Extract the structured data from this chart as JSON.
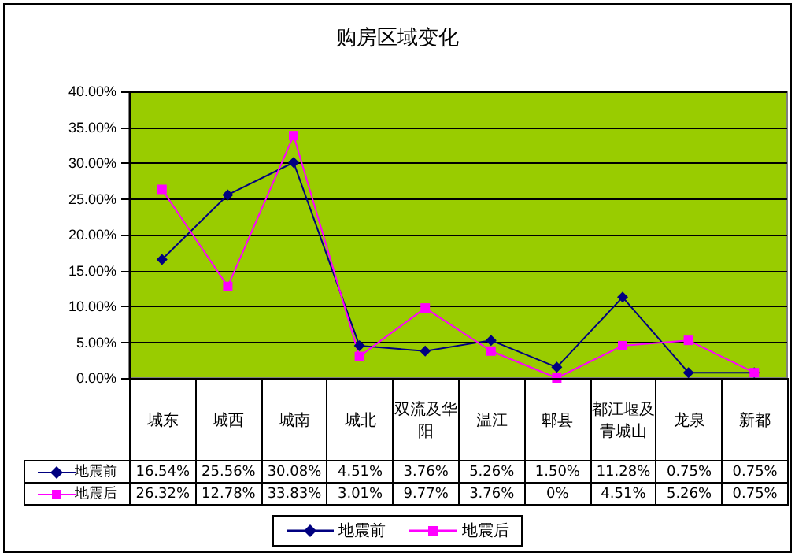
{
  "chart_data": {
    "type": "line",
    "title": "购房区域变化",
    "categories": [
      "城东",
      "城西",
      "城南",
      "城北",
      "双流及华阳",
      "温江",
      "郫县",
      "都江堰及青城山",
      "龙泉",
      "新都"
    ],
    "series": [
      {
        "name": "地震前",
        "color": "#000080",
        "marker": "diamond",
        "values": [
          16.54,
          25.56,
          30.08,
          4.51,
          3.76,
          5.26,
          1.5,
          11.28,
          0.75,
          0.75
        ],
        "value_labels": [
          "16.54%",
          "25.56%",
          "30.08%",
          "4.51%",
          "3.76%",
          "5.26%",
          "1.50%",
          "11.28%",
          "0.75%",
          "0.75%"
        ]
      },
      {
        "name": "地震后",
        "color": "#ff00ff",
        "marker": "square",
        "values": [
          26.32,
          12.78,
          33.83,
          3.01,
          9.77,
          3.76,
          0,
          4.51,
          5.26,
          0.75
        ],
        "value_labels": [
          "26.32%",
          "12.78%",
          "33.83%",
          "3.01%",
          "9.77%",
          "3.76%",
          "0%",
          "4.51%",
          "5.26%",
          "0.75%"
        ]
      }
    ],
    "ylim": [
      0,
      40
    ],
    "yticks": [
      {
        "value": 0,
        "label": "0.00%"
      },
      {
        "value": 5,
        "label": "5.00%"
      },
      {
        "value": 10,
        "label": "10.00%"
      },
      {
        "value": 15,
        "label": "15.00%"
      },
      {
        "value": 20,
        "label": "20.00%"
      },
      {
        "value": 25,
        "label": "25.00%"
      },
      {
        "value": 30,
        "label": "30.00%"
      },
      {
        "value": 35,
        "label": "35.00%"
      },
      {
        "value": 40,
        "label": "40.00%"
      }
    ],
    "grid": "y",
    "legend": "bottom"
  }
}
